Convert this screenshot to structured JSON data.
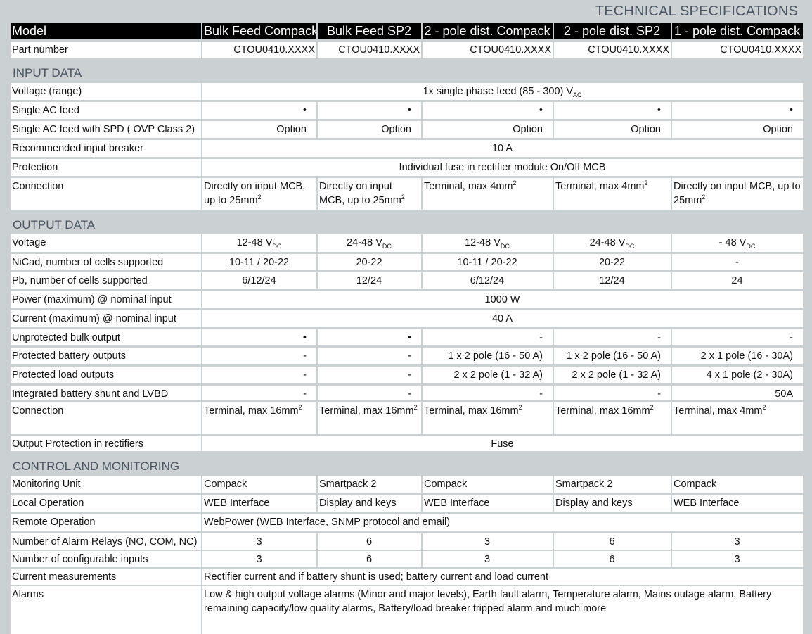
{
  "title": "TECHNICAL SPECIFICATIONS",
  "header": {
    "label": "Model",
    "models": [
      "Bulk Feed Compack",
      "Bulk Feed SP2",
      "2 - pole dist. Compack",
      "2 - pole dist. SP2",
      "1 - pole dist. Compack"
    ]
  },
  "part_number": {
    "label": "Part number",
    "values": [
      "CTOU0410.XXXX",
      "CTOU0410.XXXX",
      "CTOU0410.XXXX",
      "CTOU0410.XXXX",
      "CTOU0410.XXXX"
    ]
  },
  "sections": [
    {
      "title": "INPUT DATA",
      "rows": [
        {
          "label": "Voltage (range)",
          "cells": [
            {
              "t": "1x single phase feed (85 - 300) V",
              "sub": "AC",
              "span": 5,
              "a": "c"
            }
          ]
        },
        {
          "label": "Single AC feed",
          "cells": [
            {
              "t": "•",
              "a": "r"
            },
            {
              "t": "•",
              "a": "r"
            },
            {
              "t": "•",
              "a": "r"
            },
            {
              "t": "•",
              "a": "r"
            },
            {
              "t": "•",
              "a": "r"
            }
          ]
        },
        {
          "label": "Single AC feed with SPD ( OVP Class 2)",
          "cells": [
            {
              "t": "Option",
              "a": "r"
            },
            {
              "t": "Option",
              "a": "r"
            },
            {
              "t": "Option",
              "a": "r"
            },
            {
              "t": "Option",
              "a": "r"
            },
            {
              "t": "Option",
              "a": "r"
            }
          ]
        },
        {
          "label": "Recommended input breaker",
          "cells": [
            {
              "t": "10 A",
              "span": 5,
              "a": "c"
            }
          ]
        },
        {
          "label": "Protection",
          "cells": [
            {
              "t": "Individual fuse in rectifier module On/Off MCB",
              "span": 5,
              "a": "c"
            }
          ]
        },
        {
          "label": "Connection",
          "cells": [
            {
              "t": "Directly on input MCB, up to 25mm",
              "sup": "2",
              "a": "l"
            },
            {
              "t": "Directly on input MCB, up to 25mm",
              "sup": "2",
              "a": "l"
            },
            {
              "t": "Terminal, max 4mm",
              "sup": "2",
              "a": "l"
            },
            {
              "t": "Terminal, max 4mm",
              "sup": "2",
              "a": "l"
            },
            {
              "t": "Directly on input MCB, up to 25mm",
              "sup": "2",
              "a": "l"
            }
          ]
        }
      ]
    },
    {
      "title": "OUTPUT DATA",
      "rows": [
        {
          "label": "Voltage",
          "cells": [
            {
              "t": "12-48 V",
              "sub": "DC",
              "a": "c"
            },
            {
              "t": "24-48 V",
              "sub": "DC",
              "a": "c"
            },
            {
              "t": "12-48 V",
              "sub": "DC",
              "a": "c"
            },
            {
              "t": "24-48 V",
              "sub": "DC",
              "a": "c"
            },
            {
              "t": "- 48 V",
              "sub": "DC",
              "a": "c"
            }
          ]
        },
        {
          "label": "NiCad, number of cells supported",
          "cells": [
            {
              "t": "10-11 / 20-22",
              "a": "c"
            },
            {
              "t": "20-22",
              "a": "c"
            },
            {
              "t": "10-11 / 20-22",
              "a": "c"
            },
            {
              "t": "20-22",
              "a": "c"
            },
            {
              "t": "-",
              "a": "c"
            }
          ]
        },
        {
          "label": "Pb, number of cells supported",
          "cells": [
            {
              "t": "6/12/24",
              "a": "c"
            },
            {
              "t": "12/24",
              "a": "c"
            },
            {
              "t": "6/12/24",
              "a": "c"
            },
            {
              "t": "12/24",
              "a": "c"
            },
            {
              "t": "24",
              "a": "c"
            }
          ]
        },
        {
          "label": "Power (maximum) @ nominal input",
          "cells": [
            {
              "t": "1000 W",
              "span": 5,
              "a": "c"
            }
          ]
        },
        {
          "label": "Current (maximum) @ nominal input",
          "cells": [
            {
              "t": "40 A",
              "span": 5,
              "a": "c"
            }
          ]
        },
        {
          "label": "Unprotected bulk output",
          "cells": [
            {
              "t": "•",
              "a": "r"
            },
            {
              "t": "•",
              "a": "r"
            },
            {
              "t": "-",
              "a": "r"
            },
            {
              "t": "-",
              "a": "r"
            },
            {
              "t": "-",
              "a": "r"
            }
          ]
        },
        {
          "label": "Protected battery outputs",
          "cells": [
            {
              "t": "-",
              "a": "r"
            },
            {
              "t": "-",
              "a": "r"
            },
            {
              "t": "1 x 2 pole (16 - 50 A)",
              "a": "r"
            },
            {
              "t": "1 x 2 pole (16 - 50 A)",
              "a": "r"
            },
            {
              "t": "2 x 1 pole (16 - 30A)",
              "a": "r"
            }
          ]
        },
        {
          "label": "Protected load outputs",
          "cells": [
            {
              "t": "-",
              "a": "r"
            },
            {
              "t": "-",
              "a": "r"
            },
            {
              "t": "2 x 2 pole (1 - 32 A)",
              "a": "r"
            },
            {
              "t": "2 x 2 pole (1 - 32 A)",
              "a": "r"
            },
            {
              "t": "4 x 1 pole (2 - 30A)",
              "a": "r"
            }
          ]
        },
        {
          "label": "Integrated battery shunt and LVBD",
          "cells": [
            {
              "t": "-",
              "a": "r"
            },
            {
              "t": "-",
              "a": "r"
            },
            {
              "t": "-",
              "a": "r"
            },
            {
              "t": "-",
              "a": "r"
            },
            {
              "t": "50A",
              "a": "r"
            }
          ]
        },
        {
          "label": "Connection",
          "cells": [
            {
              "t": "Terminal, max 16mm",
              "sup": "2",
              "a": "l"
            },
            {
              "t": "Terminal, max 16mm",
              "sup": "2",
              "a": "l"
            },
            {
              "t": "Terminal, max 16mm",
              "sup": "2",
              "a": "l"
            },
            {
              "t": "Terminal, max 16mm",
              "sup": "2",
              "a": "l"
            },
            {
              "t": "Terminal, max 4mm",
              "sup": "2",
              "a": "l"
            }
          ]
        },
        {
          "label": "Output Protection in rectifiers",
          "cells": [
            {
              "t": "Fuse",
              "span": 5,
              "a": "c"
            }
          ]
        }
      ]
    },
    {
      "title": "CONTROL AND MONITORING",
      "rows": [
        {
          "label": "Monitoring Unit",
          "cells": [
            {
              "t": "Compack",
              "a": "l"
            },
            {
              "t": "Smartpack 2",
              "a": "l"
            },
            {
              "t": "Compack",
              "a": "l"
            },
            {
              "t": "Smartpack 2",
              "a": "l"
            },
            {
              "t": "Compack",
              "a": "l"
            }
          ]
        },
        {
          "label": "Local Operation",
          "cells": [
            {
              "t": "WEB Interface",
              "a": "l"
            },
            {
              "t": "Display and keys",
              "a": "l"
            },
            {
              "t": "WEB Interface",
              "a": "l"
            },
            {
              "t": "Display and keys",
              "a": "l"
            },
            {
              "t": "WEB Interface",
              "a": "l"
            }
          ]
        },
        {
          "label": "Remote Operation",
          "cells": [
            {
              "t": "WebPower (WEB Interface, SNMP protocol and email)",
              "span": 5,
              "a": "l"
            }
          ]
        },
        {
          "label": "Number of Alarm Relays (NO, COM, NC)",
          "cells": [
            {
              "t": "3",
              "a": "c"
            },
            {
              "t": "6",
              "a": "c"
            },
            {
              "t": "3",
              "a": "c"
            },
            {
              "t": "6",
              "a": "c"
            },
            {
              "t": "3",
              "a": "c"
            }
          ]
        },
        {
          "label": "Number of configurable inputs",
          "cells": [
            {
              "t": "3",
              "a": "c"
            },
            {
              "t": "6",
              "a": "c"
            },
            {
              "t": "3",
              "a": "c"
            },
            {
              "t": "6",
              "a": "c"
            },
            {
              "t": "3",
              "a": "c"
            }
          ]
        },
        {
          "label": "Current measurements",
          "cells": [
            {
              "t": "Rectifier current and if battery shunt is used; battery current and load current",
              "span": 5,
              "a": "l"
            }
          ]
        },
        {
          "label": "Alarms",
          "cells": [
            {
              "t": "Low & high output voltage alarms (Minor and major levels), Earth fault alarm, Temperature alarm, Mains outage alarm, Battery remaining capacity/low quality alarms, Battery/load breaker tripped alarm and much more",
              "span": 5,
              "a": "l"
            }
          ]
        }
      ]
    }
  ]
}
